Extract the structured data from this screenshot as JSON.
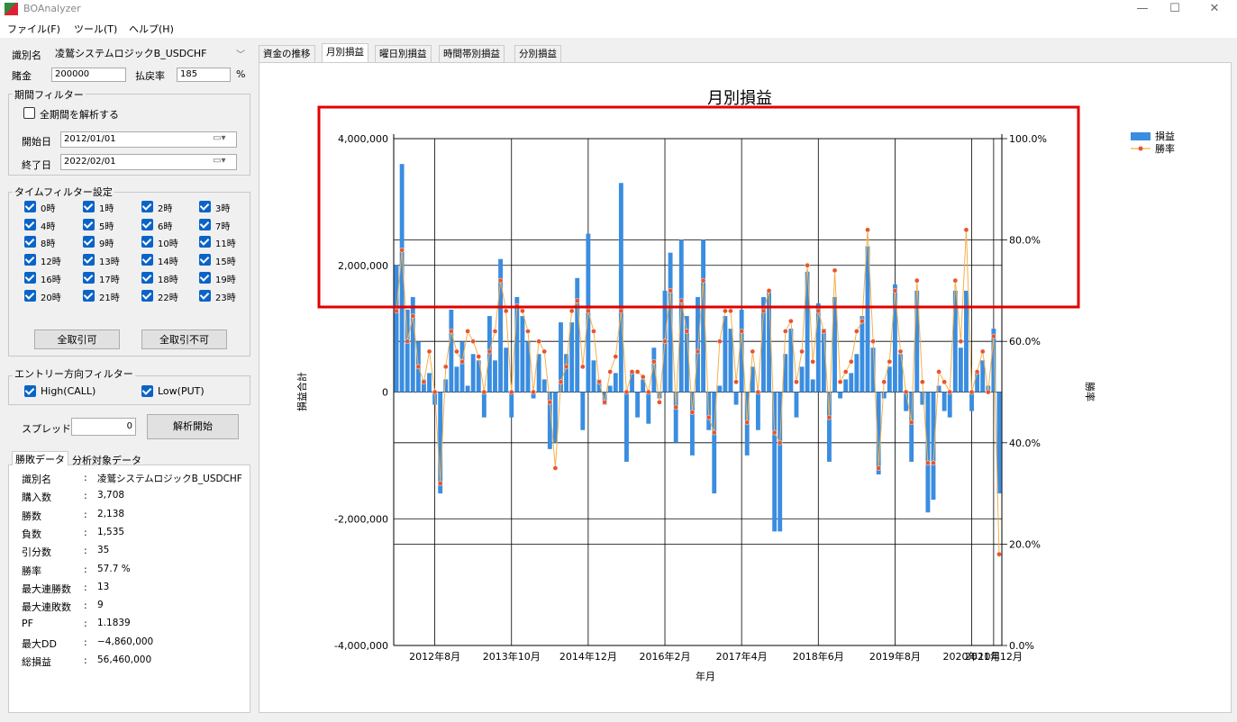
{
  "window": {
    "title": "BOAnalyzer",
    "minimize": "—",
    "maximize": "☐",
    "close": "✕"
  },
  "menu": [
    "ファイル(F)",
    "ツール(T)",
    "ヘルプ(H)"
  ],
  "settings": {
    "id_label": "識別名",
    "id_value": "凌鷲システムロジックB_USDCHF",
    "stake_label": "賭金",
    "stake_value": "200000",
    "payout_label": "払戻率",
    "payout_value": "185",
    "payout_unit": "%"
  },
  "period_filter": {
    "title": "期間フィルター",
    "all_period_label": "全期間を解析する",
    "all_period_checked": false,
    "start_label": "開始日",
    "start_value": "2012/01/01",
    "end_label": "終了日",
    "end_value": "2022/02/01"
  },
  "time_filter": {
    "title": "タイムフィルター設定",
    "hours": [
      "0時",
      "1時",
      "2時",
      "3時",
      "4時",
      "5時",
      "6時",
      "7時",
      "8時",
      "9時",
      "10時",
      "11時",
      "12時",
      "13時",
      "14時",
      "15時",
      "16時",
      "17時",
      "18時",
      "19時",
      "20時",
      "21時",
      "22時",
      "23時"
    ],
    "select_all": "全取引可",
    "deselect_all": "全取引不可"
  },
  "entry_filter": {
    "title": "エントリー方向フィルター",
    "high_label": "High(CALL)",
    "low_label": "Low(PUT)"
  },
  "spread": {
    "label": "スプレッド",
    "value": "0",
    "analyze_button": "解析開始"
  },
  "result_tabs": [
    "勝敗データ",
    "分析対象データ"
  ],
  "stats": [
    {
      "label": "識別名",
      "value": "凌鷲システムロジックB_USDCHF"
    },
    {
      "label": "購入数",
      "value": "3,708"
    },
    {
      "label": "勝数",
      "value": "2,138"
    },
    {
      "label": "負数",
      "value": "1,535"
    },
    {
      "label": "引分数",
      "value": "35"
    },
    {
      "label": "勝率",
      "value": "57.7 %"
    },
    {
      "label": "最大連勝数",
      "value": "13"
    },
    {
      "label": "最大連敗数",
      "value": "9"
    },
    {
      "label": "PF",
      "value": "1.1839"
    },
    {
      "label": "最大DD",
      "value": "−4,860,000"
    },
    {
      "label": "総損益",
      "value": "56,460,000"
    }
  ],
  "chart_tabs": [
    "資金の推移",
    "月別損益",
    "曜日別損益",
    "時間帯別損益",
    "分別損益"
  ],
  "active_chart_tab": 1,
  "colors": {
    "bar": "#3a8de0",
    "line": "#f5b04a",
    "marker": "#e8552c",
    "highlight": "#e00000",
    "checkbox": "#0a64c8"
  },
  "chart_data": {
    "type": "bar",
    "title": "月別損益",
    "xlabel": "年月",
    "ylabel": "損益合計",
    "y2label": "勝率",
    "ylim": [
      -4000000,
      4000000
    ],
    "y2lim": [
      0,
      100
    ],
    "yticks": [
      "4,000,000",
      "2,000,000",
      "0",
      "-2,000,000",
      "-4,000,000"
    ],
    "y2ticks": [
      "100.0%",
      "80.0%",
      "60.0%",
      "40.0%",
      "20.0%",
      "0.0%"
    ],
    "xticks": [
      "2012年8月",
      "2013年10月",
      "2014年12月",
      "2016年2月",
      "2017年4月",
      "2018年6月",
      "2019年8月",
      "2020年10月",
      "2021年12月"
    ],
    "series": [
      {
        "name": "損益",
        "type": "bar",
        "values": [
          2000000,
          3600000,
          1300000,
          1500000,
          800000,
          200000,
          300000,
          -200000,
          -1600000,
          200000,
          1300000,
          400000,
          800000,
          100000,
          600000,
          500000,
          -400000,
          1200000,
          500000,
          2100000,
          700000,
          -400000,
          1500000,
          1200000,
          800000,
          -100000,
          600000,
          200000,
          -900000,
          -800000,
          1100000,
          600000,
          1100000,
          1800000,
          -600000,
          2500000,
          500000,
          200000,
          -200000,
          100000,
          300000,
          3300000,
          -1100000,
          300000,
          -400000,
          200000,
          -500000,
          700000,
          -100000,
          1600000,
          2200000,
          -800000,
          2400000,
          1200000,
          -1000000,
          1500000,
          2400000,
          -600000,
          -1600000,
          100000,
          1200000,
          1000000,
          -200000,
          1300000,
          -1000000,
          400000,
          -600000,
          1500000,
          1600000,
          -2200000,
          -2200000,
          600000,
          1000000,
          -400000,
          400000,
          1900000,
          200000,
          1400000,
          1000000,
          -1100000,
          1500000,
          -100000,
          200000,
          300000,
          600000,
          1200000,
          2300000,
          700000,
          -1300000,
          -100000,
          400000,
          1700000,
          600000,
          -300000,
          -1100000,
          1600000,
          -200000,
          -1900000,
          -1700000,
          100000,
          -300000,
          -400000,
          1600000,
          700000,
          1600000,
          -300000,
          300000,
          500000,
          100000,
          1000000,
          -1600000
        ]
      },
      {
        "name": "勝率",
        "type": "line",
        "values": [
          66,
          78,
          60,
          65,
          55,
          52,
          58,
          50,
          32,
          55,
          62,
          58,
          56,
          62,
          60,
          57,
          50,
          58,
          62,
          72,
          66,
          50,
          67,
          66,
          62,
          50,
          60,
          58,
          48,
          35,
          52,
          55,
          66,
          68,
          55,
          66,
          62,
          52,
          48,
          54,
          57,
          66,
          50,
          54,
          54,
          53,
          50,
          56,
          48,
          60,
          70,
          47,
          68,
          62,
          46,
          58,
          72,
          45,
          42,
          60,
          66,
          66,
          52,
          62,
          44,
          58,
          50,
          66,
          70,
          42,
          40,
          62,
          64,
          52,
          58,
          75,
          56,
          66,
          62,
          45,
          74,
          52,
          54,
          56,
          62,
          64,
          82,
          60,
          35,
          52,
          56,
          70,
          58,
          50,
          44,
          72,
          52,
          36,
          36,
          54,
          52,
          50,
          72,
          60,
          82,
          50,
          54,
          58,
          50,
          61,
          18
        ]
      }
    ]
  }
}
